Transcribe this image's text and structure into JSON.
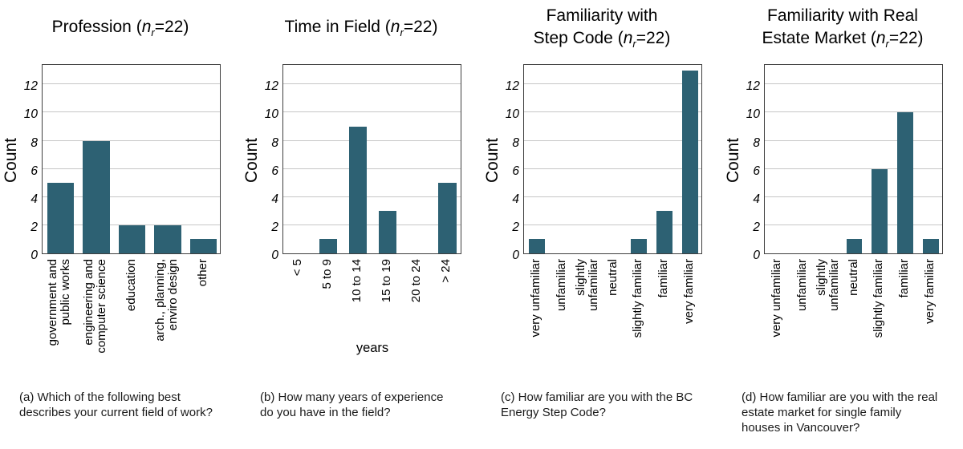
{
  "figure": {
    "ylabel": "Count",
    "yticks": [
      0,
      2,
      4,
      6,
      8,
      10,
      12
    ],
    "ylim": [
      0,
      13.5
    ],
    "bar_color": "#2d6173",
    "grid_color": "#c6c6c6",
    "spine_color": "#3f3f3f",
    "grid": "on",
    "legend": "none"
  },
  "chart_data": [
    {
      "type": "bar",
      "title_prefix": "Profession (",
      "n_symbol": "n",
      "n_subscript": "r",
      "title_suffix": "=22)",
      "ylabel": "Count",
      "xlabel": "",
      "categories": [
        "government and\npublic works",
        "engineering and\ncomputer science",
        "education",
        "arch., planning,\nenviro design",
        "other"
      ],
      "values": [
        5,
        8,
        2,
        2,
        1
      ],
      "bar_rel_width": 0.75,
      "caption": "(a) Which of the following best describes your current field of work?"
    },
    {
      "type": "bar",
      "title_prefix": "Time in Field (",
      "n_symbol": "n",
      "n_subscript": "r",
      "title_suffix": "=22)",
      "ylabel": "Count",
      "xlabel": "years",
      "categories": [
        "< 5",
        "5 to 9",
        "10 to 14",
        "15 to 19",
        "20 to 24",
        "> 24"
      ],
      "values": [
        0,
        1,
        9,
        3,
        0,
        5
      ],
      "bar_rel_width": 0.6,
      "caption": "(b) How many years of experience do you have in the field?"
    },
    {
      "type": "bar",
      "title_prefix": "Familiarity with\nStep Code (",
      "n_symbol": "n",
      "n_subscript": "r",
      "title_suffix": "=22)",
      "ylabel": "Count",
      "xlabel": "",
      "categories": [
        "very unfamiliar",
        "unfamiliar",
        "slightly\nunfamiliar",
        "neutral",
        "slightly familiar",
        "familiar",
        "very familiar"
      ],
      "values": [
        1,
        0,
        0,
        0,
        1,
        3,
        13
      ],
      "bar_rel_width": 0.62,
      "caption": "(c) How familiar are you with the BC Energy Step Code?"
    },
    {
      "type": "bar",
      "title_prefix": "Familiarity with Real\nEstate Market (",
      "n_symbol": "n",
      "n_subscript": "r",
      "title_suffix": "=22)",
      "ylabel": "Count",
      "xlabel": "",
      "categories": [
        "very unfamiliar",
        "unfamiliar",
        "slightly\nunfamiliar",
        "neutral",
        "slightly familiar",
        "familiar",
        "very familiar"
      ],
      "values": [
        0,
        0,
        0,
        1,
        6,
        10,
        1
      ],
      "bar_rel_width": 0.62,
      "caption": "(d) How familiar are you with the real estate market for single family houses in Vancouver?"
    }
  ]
}
